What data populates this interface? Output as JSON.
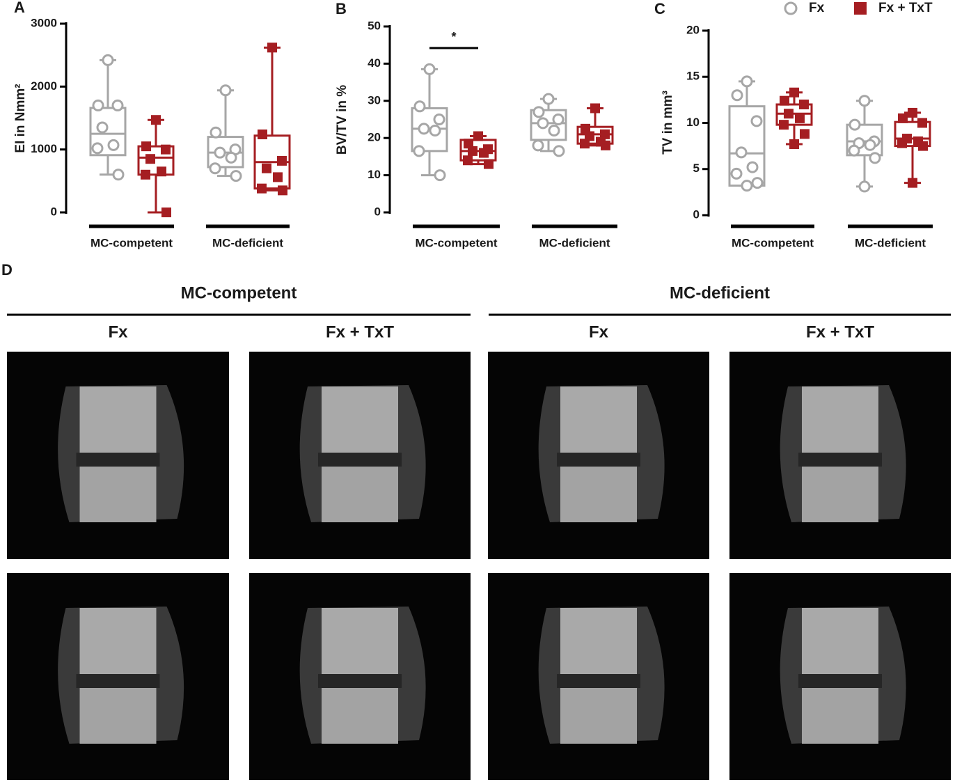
{
  "chart_data": [
    {
      "type": "box",
      "panel": "A",
      "y_label": "EI in Nmm²",
      "ylim": [
        0,
        3000
      ],
      "yticks": [
        0,
        1000,
        2000,
        3000
      ],
      "categories": [
        "MC-competent",
        "MC-deficient"
      ],
      "series": [
        {
          "name": "Fx",
          "color": "#a6a6a6",
          "marker": "circle",
          "groups": [
            {
              "min": 600,
              "q1": 910,
              "median": 1250,
              "q3": 1660,
              "max": 2420,
              "points": [
                2420,
                1700,
                1700,
                1350,
                1070,
                1020,
                600
              ]
            },
            {
              "min": 580,
              "q1": 720,
              "median": 950,
              "q3": 1200,
              "max": 1940,
              "points": [
                1940,
                1270,
                1000,
                950,
                870,
                700,
                580
              ]
            }
          ]
        },
        {
          "name": "Fx + TxT",
          "color": "#a51e22",
          "marker": "square",
          "groups": [
            {
              "min": 0,
              "q1": 600,
              "median": 870,
              "q3": 1050,
              "max": 1470,
              "points": [
                1470,
                1050,
                1000,
                850,
                650,
                600,
                0
              ]
            },
            {
              "min": 350,
              "q1": 380,
              "median": 800,
              "q3": 1220,
              "max": 2620,
              "points": [
                2620,
                1240,
                820,
                700,
                560,
                380,
                350
              ]
            }
          ]
        }
      ]
    },
    {
      "type": "box",
      "panel": "B",
      "y_label": "BV/TV in %",
      "ylim": [
        0,
        50
      ],
      "yticks": [
        0,
        10,
        20,
        30,
        40,
        50
      ],
      "annotation": "*",
      "categories": [
        "MC-competent",
        "MC-deficient"
      ],
      "series": [
        {
          "name": "Fx",
          "color": "#a6a6a6",
          "marker": "circle",
          "groups": [
            {
              "min": 10,
              "q1": 16.5,
              "median": 22.5,
              "q3": 28,
              "max": 38.5,
              "points": [
                38.5,
                28.5,
                25,
                22.5,
                22,
                16.5,
                10
              ]
            },
            {
              "min": 16.5,
              "q1": 19.5,
              "median": 24,
              "q3": 27.5,
              "max": 30.5,
              "points": [
                30.5,
                27,
                25,
                24,
                22,
                18,
                16.5
              ]
            }
          ]
        },
        {
          "name": "Fx + TxT",
          "color": "#a51e22",
          "marker": "square",
          "groups": [
            {
              "min": 13,
              "q1": 14,
              "median": 16.5,
              "q3": 19.5,
              "max": 20.5,
              "points": [
                20.5,
                18.5,
                17,
                16.5,
                16,
                14,
                13
              ]
            },
            {
              "min": 18,
              "q1": 18.5,
              "median": 21,
              "q3": 23,
              "max": 28,
              "points": [
                28,
                22.5,
                21,
                20.5,
                19,
                18.5,
                18
              ]
            }
          ]
        }
      ]
    },
    {
      "type": "box",
      "panel": "C",
      "y_label": "TV in mm³",
      "ylim": [
        0,
        20
      ],
      "yticks": [
        0,
        5,
        10,
        15,
        20
      ],
      "legend": "top-right",
      "categories": [
        "MC-competent",
        "MC-deficient"
      ],
      "series": [
        {
          "name": "Fx",
          "color": "#a6a6a6",
          "marker": "circle",
          "groups": [
            {
              "min": 3.2,
              "q1": 3.2,
              "median": 6.7,
              "q3": 11.8,
              "max": 14.5,
              "points": [
                14.5,
                13,
                10.2,
                6.8,
                5.2,
                4.5,
                3.5,
                3.2
              ]
            },
            {
              "min": 3.1,
              "q1": 6.5,
              "median": 8,
              "q3": 9.8,
              "max": 12.4,
              "points": [
                12.4,
                9.8,
                8,
                7.8,
                7.6,
                7,
                6.2,
                3.1
              ]
            }
          ]
        },
        {
          "name": "Fx + TxT",
          "color": "#a51e22",
          "marker": "square",
          "groups": [
            {
              "min": 7.7,
              "q1": 9.8,
              "median": 11,
              "q3": 12,
              "max": 13.3,
              "points": [
                13.3,
                12.4,
                12,
                11,
                10.5,
                9.8,
                8.8,
                7.7
              ]
            },
            {
              "min": 3.5,
              "q1": 7.5,
              "median": 8.3,
              "q3": 10.1,
              "max": 11.1,
              "points": [
                11.1,
                10.5,
                10,
                8.3,
                8,
                7.8,
                7.5,
                3.5
              ]
            }
          ]
        }
      ]
    }
  ],
  "panel_d": {
    "label": "D",
    "groups": [
      {
        "title": "MC-competent",
        "columns": [
          "Fx",
          "Fx + TxT"
        ]
      },
      {
        "title": "MC-deficient",
        "columns": [
          "Fx",
          "Fx + TxT"
        ]
      }
    ]
  }
}
